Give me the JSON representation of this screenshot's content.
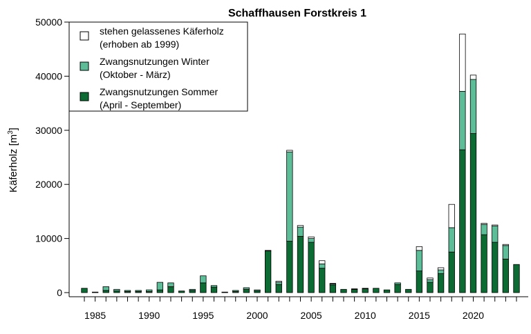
{
  "chart_data": {
    "type": "bar",
    "stacked": true,
    "title": "Schaffhausen Forstkreis 1",
    "ylabel": "Käferholz [m",
    "ylabel_sup": "3",
    "ylabel_close": "]",
    "xlabel": "",
    "ylim": [
      0,
      50000
    ],
    "yticks": [
      "0",
      "10000",
      "20000",
      "30000",
      "40000",
      "50000"
    ],
    "xticks": [
      "1985",
      "1990",
      "1995",
      "2000",
      "2005",
      "2010",
      "2015",
      "2020"
    ],
    "categories": [
      1984,
      1985,
      1986,
      1987,
      1988,
      1989,
      1990,
      1991,
      1992,
      1993,
      1994,
      1995,
      1996,
      1997,
      1998,
      1999,
      2000,
      2001,
      2002,
      2003,
      2004,
      2005,
      2006,
      2007,
      2008,
      2009,
      2010,
      2011,
      2012,
      2013,
      2014,
      2015,
      2016,
      2017,
      2018,
      2019,
      2020,
      2021,
      2022,
      2023,
      2024
    ],
    "legend_position": "top-left",
    "series": [
      {
        "name": "Zwangsnutzungen Sommer",
        "name_line2": "(April - September)",
        "color": "#0b6b32",
        "values": [
          800,
          100,
          400,
          300,
          200,
          200,
          200,
          500,
          1100,
          300,
          400,
          1800,
          1000,
          100,
          200,
          600,
          300,
          7700,
          1500,
          9500,
          10400,
          9300,
          4500,
          1400,
          600,
          600,
          700,
          800,
          500,
          1500,
          600,
          4000,
          1900,
          3500,
          7500,
          26400,
          29400,
          10700,
          9300,
          6200,
          5200
        ]
      },
      {
        "name": "Zwangsnutzungen Winter",
        "name_line2": "(Oktober - März)",
        "color": "#5cbd98",
        "values": [
          0,
          0,
          700,
          300,
          200,
          200,
          300,
          1400,
          700,
          0,
          200,
          1300,
          300,
          0,
          200,
          300,
          200,
          100,
          400,
          16500,
          1700,
          700,
          800,
          200,
          0,
          100,
          100,
          0,
          0,
          300,
          0,
          3800,
          500,
          700,
          4500,
          10800,
          10000,
          1900,
          3000,
          2500,
          0
        ]
      },
      {
        "name": "stehen gelassenes Käferholz",
        "name_line2": "(erhoben ab 1999)",
        "color": "#ffffff",
        "values": [
          0,
          0,
          0,
          0,
          0,
          0,
          0,
          0,
          0,
          0,
          0,
          0,
          0,
          0,
          0,
          0,
          0,
          0,
          200,
          300,
          300,
          300,
          600,
          100,
          0,
          0,
          0,
          0,
          0,
          0,
          0,
          700,
          300,
          400,
          4300,
          10600,
          800,
          200,
          200,
          200,
          0
        ]
      }
    ]
  }
}
